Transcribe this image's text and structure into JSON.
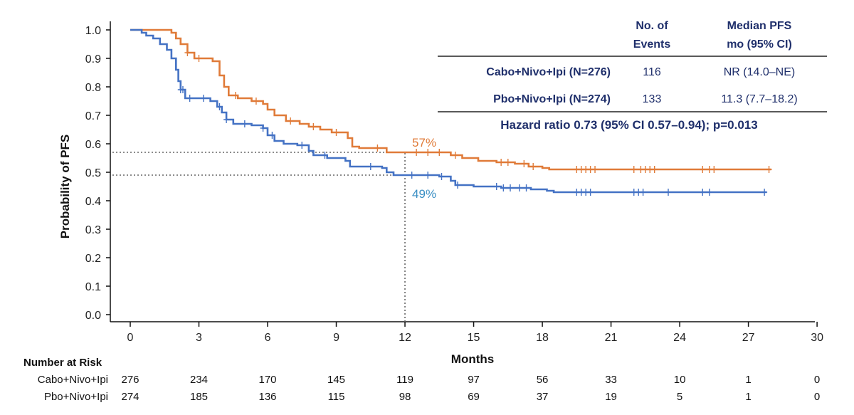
{
  "chart_data": {
    "type": "line",
    "chart_kind": "Kaplan-Meier survival curve",
    "xlabel": "Months",
    "ylabel": "Probability of PFS",
    "xlim": [
      0,
      30
    ],
    "ylim": [
      0,
      1.0
    ],
    "x_ticks": [
      "0",
      "3",
      "6",
      "9",
      "12",
      "15",
      "18",
      "21",
      "24",
      "27",
      "30"
    ],
    "y_ticks": [
      "0.0",
      "0.1",
      "0.2",
      "0.3",
      "0.4",
      "0.5",
      "0.6",
      "0.7",
      "0.8",
      "0.9",
      "1.0"
    ],
    "grid": false,
    "reference_lines": {
      "x": 12,
      "y": [
        0.57,
        0.49
      ],
      "style": "dotted"
    },
    "series": [
      {
        "name": "Cabo+Nivo+Ipi",
        "color": "#e07b39",
        "step_points": [
          [
            0,
            1.0
          ],
          [
            1.8,
            0.99
          ],
          [
            2.0,
            0.97
          ],
          [
            2.2,
            0.95
          ],
          [
            2.5,
            0.92
          ],
          [
            2.8,
            0.9
          ],
          [
            3.6,
            0.89
          ],
          [
            3.9,
            0.84
          ],
          [
            4.1,
            0.8
          ],
          [
            4.3,
            0.77
          ],
          [
            4.7,
            0.76
          ],
          [
            5.3,
            0.75
          ],
          [
            5.8,
            0.74
          ],
          [
            6.0,
            0.72
          ],
          [
            6.3,
            0.7
          ],
          [
            6.8,
            0.68
          ],
          [
            7.4,
            0.67
          ],
          [
            7.8,
            0.66
          ],
          [
            8.3,
            0.65
          ],
          [
            8.8,
            0.64
          ],
          [
            9.5,
            0.62
          ],
          [
            9.7,
            0.59
          ],
          [
            10.0,
            0.585
          ],
          [
            11.2,
            0.57
          ],
          [
            11.5,
            0.57
          ],
          [
            12.0,
            0.57
          ],
          [
            14.0,
            0.56
          ],
          [
            14.5,
            0.55
          ],
          [
            15.2,
            0.54
          ],
          [
            16.0,
            0.535
          ],
          [
            16.8,
            0.53
          ],
          [
            17.4,
            0.52
          ],
          [
            18.0,
            0.515
          ],
          [
            18.3,
            0.51
          ],
          [
            28.0,
            0.51
          ]
        ],
        "censor_x": [
          2.5,
          3.0,
          4.6,
          5.5,
          7.0,
          8.0,
          9.0,
          10.8,
          12.5,
          13.0,
          13.5,
          14.2,
          16.2,
          16.5,
          17.2,
          17.6,
          19.5,
          19.7,
          19.9,
          20.1,
          20.3,
          22.0,
          22.3,
          22.5,
          22.7,
          22.9,
          25.0,
          25.3,
          25.5,
          27.9
        ]
      },
      {
        "name": "Pbo+Nivo+Ipi",
        "color": "#4472c4",
        "step_points": [
          [
            0,
            1.0
          ],
          [
            0.5,
            0.99
          ],
          [
            0.7,
            0.98
          ],
          [
            1.0,
            0.97
          ],
          [
            1.3,
            0.95
          ],
          [
            1.6,
            0.93
          ],
          [
            1.8,
            0.9
          ],
          [
            2.0,
            0.86
          ],
          [
            2.1,
            0.82
          ],
          [
            2.2,
            0.79
          ],
          [
            2.4,
            0.76
          ],
          [
            3.5,
            0.75
          ],
          [
            3.8,
            0.73
          ],
          [
            4.0,
            0.71
          ],
          [
            4.2,
            0.685
          ],
          [
            4.5,
            0.67
          ],
          [
            5.3,
            0.665
          ],
          [
            5.8,
            0.655
          ],
          [
            6.0,
            0.63
          ],
          [
            6.3,
            0.61
          ],
          [
            6.7,
            0.6
          ],
          [
            7.3,
            0.595
          ],
          [
            7.8,
            0.575
          ],
          [
            8.0,
            0.56
          ],
          [
            8.6,
            0.55
          ],
          [
            9.4,
            0.54
          ],
          [
            9.6,
            0.52
          ],
          [
            11.0,
            0.515
          ],
          [
            11.2,
            0.5
          ],
          [
            11.5,
            0.49
          ],
          [
            12.0,
            0.49
          ],
          [
            13.5,
            0.485
          ],
          [
            14.0,
            0.47
          ],
          [
            14.2,
            0.455
          ],
          [
            15.0,
            0.45
          ],
          [
            16.2,
            0.445
          ],
          [
            17.5,
            0.44
          ],
          [
            18.2,
            0.435
          ],
          [
            18.5,
            0.43
          ],
          [
            27.8,
            0.43
          ]
        ],
        "censor_x": [
          2.2,
          2.3,
          2.6,
          3.2,
          3.9,
          4.2,
          5.0,
          5.8,
          6.2,
          7.5,
          8.5,
          10.5,
          12.3,
          13.0,
          13.6,
          14.3,
          16.0,
          16.3,
          16.6,
          17.0,
          17.3,
          19.5,
          19.7,
          19.9,
          20.1,
          22.0,
          22.2,
          22.4,
          23.5,
          25.0,
          25.3,
          27.7
        ]
      }
    ],
    "annotations": [
      {
        "text": "57%",
        "x": 12,
        "y": 0.57,
        "color": "#e07b39"
      },
      {
        "text": "49%",
        "x": 12,
        "y": 0.49,
        "color": "#3a8fc4"
      }
    ],
    "summary_table": {
      "headers": [
        [
          "No. of",
          "Events"
        ],
        [
          "Median PFS",
          "mo (95% CI)"
        ]
      ],
      "rows": [
        {
          "label": "Cabo+Nivo+Ipi (N=276)",
          "events": "116",
          "median": "NR (14.0–NE)",
          "color": "#e07b39"
        },
        {
          "label": "Pbo+Nivo+Ipi (N=274)",
          "events": "133",
          "median": "11.3 (7.7–18.2)",
          "color": "#3a8fc4"
        }
      ],
      "hazard_ratio": "Hazard ratio 0.73 (95% CI 0.57–0.94); p=0.013"
    },
    "risk_table": {
      "title": "Number at Risk",
      "rows": [
        {
          "label": "Cabo+Nivo+Ipi",
          "values": [
            "276",
            "234",
            "170",
            "145",
            "119",
            "97",
            "56",
            "33",
            "10",
            "1",
            "0"
          ]
        },
        {
          "label": "Pbo+Nivo+Ipi",
          "values": [
            "274",
            "185",
            "136",
            "115",
            "98",
            "69",
            "37",
            "19",
            "5",
            "1",
            "0"
          ]
        }
      ]
    }
  }
}
